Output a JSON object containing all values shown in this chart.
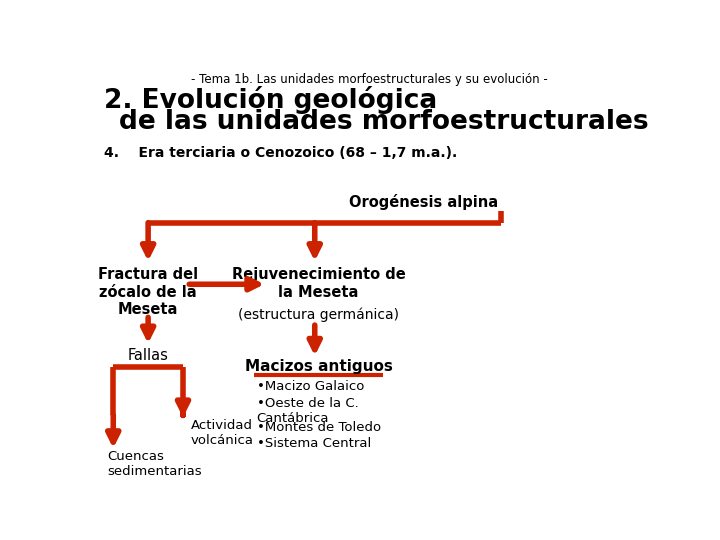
{
  "bg_color": "#ffffff",
  "arrow_color": "#cc2200",
  "subtitle": "- Tema 1b. Las unidades morfoestructurales y su evolución -",
  "title_line1": "2. Evolución geológica",
  "title_line2": "    de las unidades morfoestructurales",
  "section": "4.    Era terciaria o Cenozoico (68 – 1,7 m.a.).",
  "text_orogénesis": "Orogénesis alpina",
  "text_fractura": "Fractura del\nzócalo de la\nMeseta",
  "text_rejuvenecimiento": "Rejuvenecimiento de\nla Meseta",
  "text_germánica": "(estructura germánica)",
  "text_fallas": "Fallas",
  "text_macizos": "Macizos antiguos",
  "text_actividad": "Actividad\nvolcánica",
  "text_cuencas": "Cuencas\nsedimentarias",
  "text_b1": "•Macizo Galaico",
  "text_b2": "•Oeste de la C.\nCantábrica",
  "text_b3": "•Montes de Toledo",
  "text_b4": "•Sistema Central"
}
